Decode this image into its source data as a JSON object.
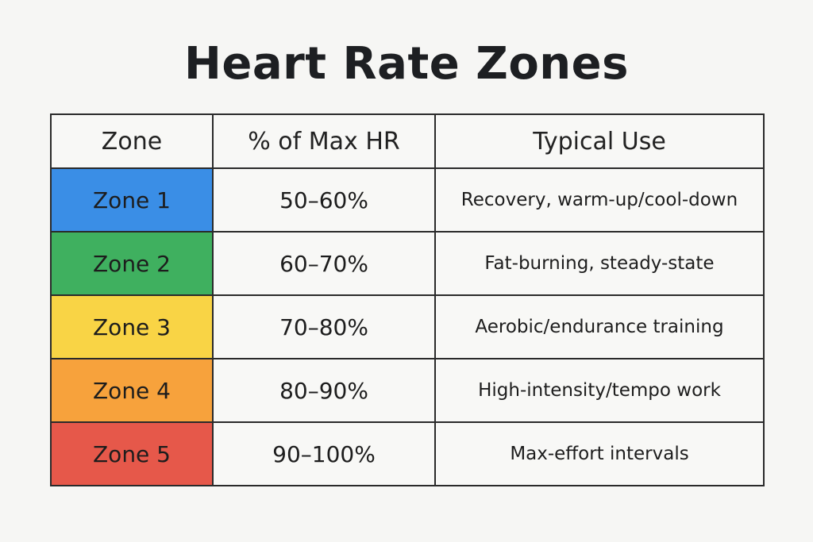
{
  "title": "Heart Rate Zones",
  "table": {
    "headers": {
      "zone": "Zone",
      "pct": "% of Max HR",
      "use": "Typical Use"
    },
    "rows": [
      {
        "zone": "Zone 1",
        "pct": "50–60%",
        "use": "Recovery, warm-up/cool-down",
        "color": "#3a8ee6"
      },
      {
        "zone": "Zone 2",
        "pct": "60–70%",
        "use": "Fat-burning, steady-state",
        "color": "#3fb05f"
      },
      {
        "zone": "Zone 3",
        "pct": "70–80%",
        "use": "Aerobic/endurance training",
        "color": "#f9d445"
      },
      {
        "zone": "Zone 4",
        "pct": "80–90%",
        "use": "High-intensity/tempo work",
        "color": "#f7a23c"
      },
      {
        "zone": "Zone 5",
        "pct": "90–100%",
        "use": "Max-effort intervals",
        "color": "#e6584a"
      }
    ]
  }
}
